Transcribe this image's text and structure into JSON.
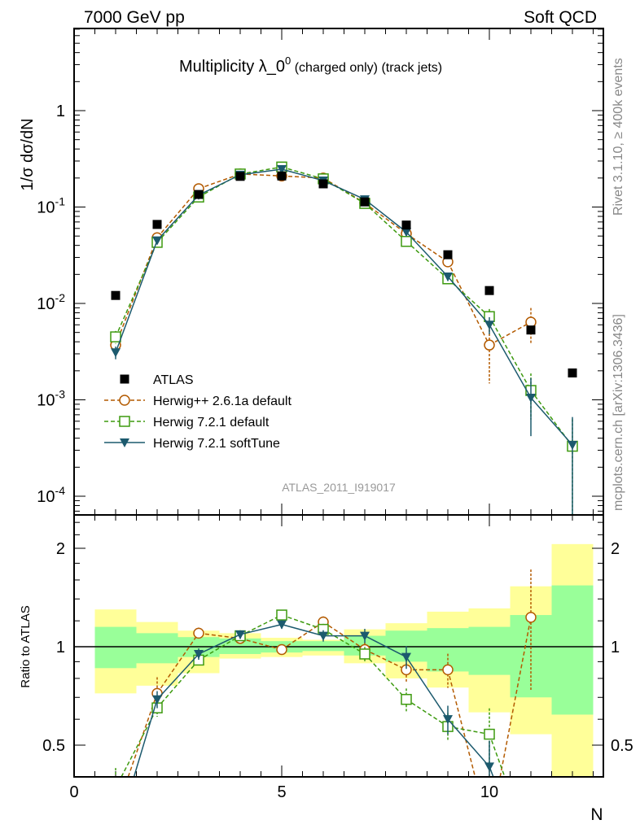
{
  "chart_data": {
    "type": "scatter",
    "header_left": "7000 GeV pp",
    "header_right": "Soft QCD",
    "title_main": "Multiplicity λ_0",
    "title_sup": "0",
    "title_small": " (charged only) (track jets)",
    "ylabel": "1/σ dσ/dN",
    "ratio_ylabel": "Ratio to ATLAS",
    "xlabel": "N",
    "xlim": [
      0,
      12.75
    ],
    "ylim": [
      6.5e-05,
      7
    ],
    "yscale": "log",
    "ratio_ylim": [
      0.4,
      2.53
    ],
    "xticks": [
      "0",
      "5",
      "10"
    ],
    "yticks": [
      "10^-4",
      "10^-3",
      "10^-2",
      "10^-1",
      "1"
    ],
    "ratio_yticks": [
      "0.5",
      "1",
      "2"
    ],
    "analysis_id": "ATLAS_2011_I919017",
    "side_text_top": "Rivet 3.1.10, ≥ 400k events",
    "side_text_bottom": "mcplots.cern.ch [arXiv:1306.3436]",
    "legend_placement": "lower-left",
    "x": [
      1,
      2,
      3,
      4,
      5,
      6,
      7,
      8,
      9,
      10,
      11,
      12
    ],
    "data": {
      "name": "ATLAS",
      "values": [
        0.0121,
        0.066,
        0.135,
        0.208,
        0.21,
        0.174,
        0.113,
        0.065,
        0.032,
        0.0136,
        0.0053,
        0.0019
      ],
      "band_total": [
        [
          0.72,
          1.3
        ],
        [
          0.76,
          1.19
        ],
        [
          0.83,
          1.12
        ],
        [
          0.92,
          1.1
        ],
        [
          0.93,
          1.065
        ],
        [
          0.94,
          1.05
        ],
        [
          0.89,
          1.13
        ],
        [
          0.8,
          1.18
        ],
        [
          0.75,
          1.28
        ],
        [
          0.63,
          1.31
        ],
        [
          0.54,
          1.53
        ],
        [
          0.3,
          2.06
        ]
      ],
      "band_stat": [
        [
          0.86,
          1.15
        ],
        [
          0.89,
          1.1
        ],
        [
          0.93,
          1.07
        ],
        [
          0.95,
          1.06
        ],
        [
          0.96,
          1.04
        ],
        [
          0.97,
          1.04
        ],
        [
          0.94,
          1.08
        ],
        [
          0.9,
          1.12
        ],
        [
          0.84,
          1.14
        ],
        [
          0.82,
          1.15
        ],
        [
          0.7,
          1.25
        ],
        [
          0.62,
          1.54
        ]
      ]
    },
    "series": [
      {
        "name": "Herwig++ 2.6.1a default",
        "color": "#b35a00",
        "marker": "circle",
        "dash": true,
        "values": [
          0.0037,
          0.048,
          0.155,
          0.22,
          0.21,
          0.2,
          0.11,
          0.053,
          0.027,
          0.0037,
          0.0064,
          null
        ],
        "rel_err": [
          0.15,
          0.12,
          0.04,
          0.03,
          0.03,
          0.04,
          0.05,
          0.08,
          0.12,
          0.6,
          0.4,
          null
        ],
        "ratio": [
          0.31,
          0.72,
          1.1,
          1.06,
          0.98,
          1.19,
          0.98,
          0.85,
          0.85,
          0.27,
          1.23,
          null
        ]
      },
      {
        "name": "Herwig 7.2.1 default",
        "color": "#3d9a0f",
        "marker": "square",
        "dash": true,
        "values": [
          0.0045,
          0.043,
          0.127,
          0.22,
          0.26,
          0.196,
          0.109,
          0.044,
          0.018,
          0.0073,
          0.00125,
          0.00033
        ],
        "rel_err": [
          0.15,
          0.06,
          0.04,
          0.03,
          0.03,
          0.04,
          0.05,
          0.08,
          0.1,
          0.2,
          0.5,
          0.9
        ],
        "ratio": [
          0.37,
          0.65,
          0.91,
          1.08,
          1.25,
          1.13,
          0.95,
          0.69,
          0.57,
          0.54,
          0.24,
          0.17
        ]
      },
      {
        "name": "Herwig 7.2.1 softTune",
        "color": "#1c5a6e",
        "marker": "triangle-down",
        "dash": false,
        "values": [
          0.0031,
          0.045,
          0.133,
          0.216,
          0.247,
          0.188,
          0.12,
          0.055,
          0.019,
          0.006,
          0.00105,
          0.00034
        ],
        "rel_err": [
          0.15,
          0.06,
          0.04,
          0.03,
          0.03,
          0.04,
          0.05,
          0.08,
          0.1,
          0.2,
          0.6,
          0.95
        ],
        "ratio": [
          0.26,
          0.69,
          0.95,
          1.09,
          1.17,
          1.08,
          1.08,
          0.93,
          0.6,
          0.43,
          0.2,
          0.18
        ]
      }
    ]
  }
}
